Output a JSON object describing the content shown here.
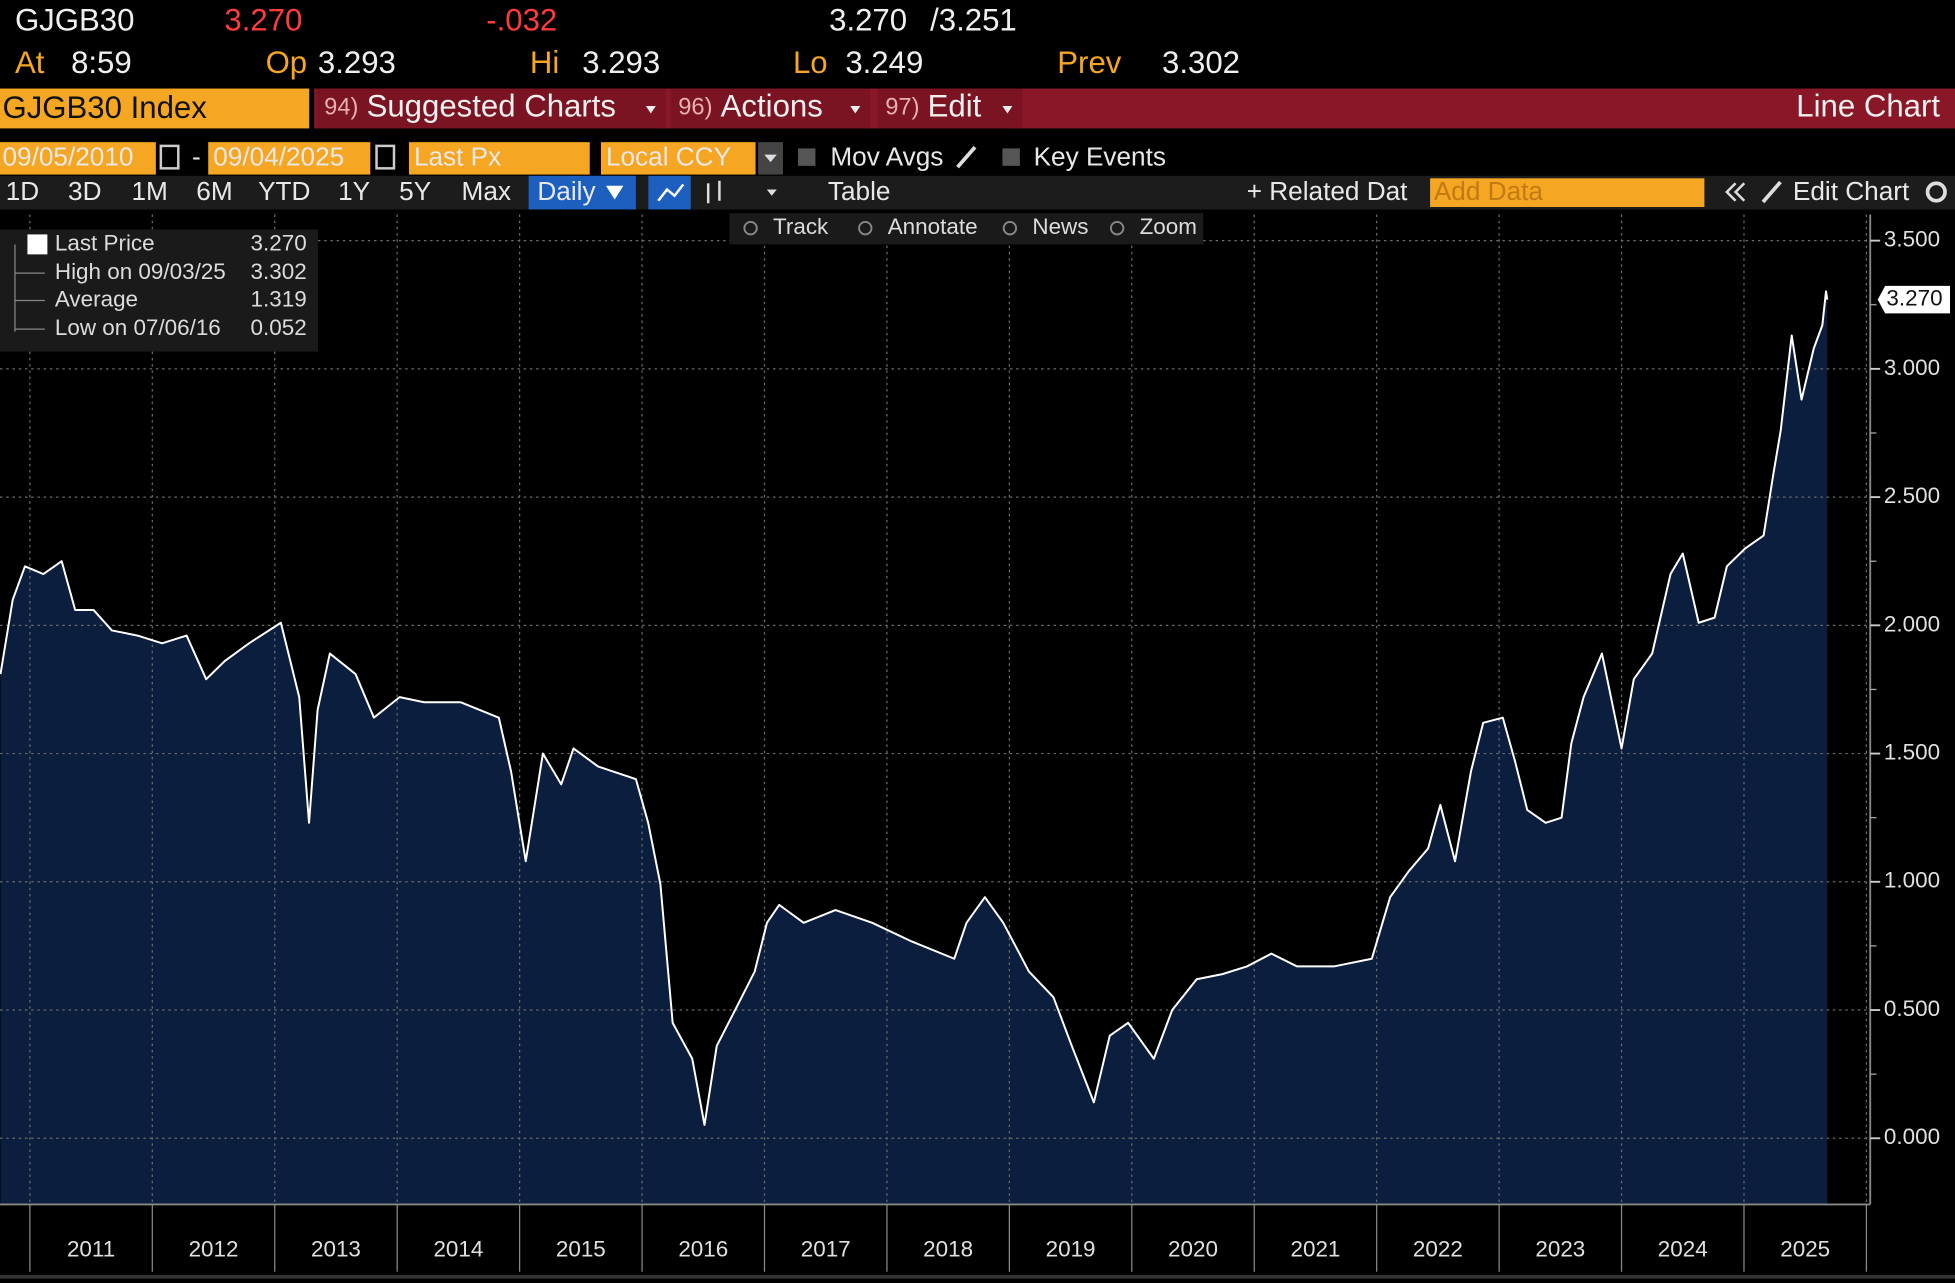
{
  "header": {
    "ticker": "GJGB30",
    "last": "3.270",
    "change": "-.032",
    "bid": "3.270",
    "ask": "/3.251",
    "time_label": "At",
    "time": "8:59",
    "open_label": "Op",
    "open": "3.293",
    "high_label": "Hi",
    "high": "3.293",
    "low_label": "Lo",
    "low": "3.249",
    "prev_label": "Prev",
    "prev": "3.302"
  },
  "menu": {
    "security": "GJGB30 Index",
    "items": [
      {
        "num": "94)",
        "label": "Suggested Charts"
      },
      {
        "num": "96)",
        "label": "Actions"
      },
      {
        "num": "97)",
        "label": "Edit"
      }
    ],
    "view": "Line Chart"
  },
  "controls": {
    "start_date": "09/05/2010",
    "separator": "-",
    "end_date": "09/04/2025",
    "field": "Last Px",
    "currency": "Local CCY",
    "mov_avgs": "Mov Avgs",
    "key_events": "Key Events"
  },
  "toolbar": {
    "periods": [
      "1D",
      "3D",
      "1M",
      "6M",
      "YTD",
      "1Y",
      "5Y",
      "Max"
    ],
    "frequency": "Daily",
    "table": "Table",
    "related": "Related Dat",
    "add_data": "Add Data",
    "edit_chart": "Edit Chart"
  },
  "tools": [
    "Track",
    "Annotate",
    "News",
    "Zoom"
  ],
  "legend": [
    {
      "label": "Last Price",
      "value": "3.270"
    },
    {
      "label": "High on 09/03/25",
      "value": "3.302"
    },
    {
      "label": "Average",
      "value": "1.319"
    },
    {
      "label": "Low on 07/06/16",
      "value": "0.052"
    }
  ],
  "chart_data": {
    "type": "area",
    "color": "#ffffff",
    "fill": "#0b1e3d",
    "grid": true,
    "last_tag": "3.270",
    "x": [
      2010.76,
      2010.86,
      2010.96,
      2011.11,
      2011.26,
      2011.37,
      2011.52,
      2011.67,
      2011.88,
      2012.08,
      2012.28,
      2012.44,
      2012.59,
      2012.79,
      2013.05,
      2013.2,
      2013.28,
      2013.35,
      2013.45,
      2013.66,
      2013.81,
      2014.02,
      2014.22,
      2014.52,
      2014.83,
      2014.93,
      2015.05,
      2015.19,
      2015.34,
      2015.44,
      2015.64,
      2015.95,
      2016.05,
      2016.15,
      2016.25,
      2016.41,
      2016.51,
      2016.61,
      2016.76,
      2016.92,
      2017.02,
      2017.12,
      2017.32,
      2017.58,
      2017.88,
      2018.19,
      2018.55,
      2018.65,
      2018.8,
      2018.95,
      2019.16,
      2019.36,
      2019.51,
      2019.69,
      2019.82,
      2019.97,
      2020.18,
      2020.33,
      2020.53,
      2020.74,
      2020.94,
      2021.14,
      2021.35,
      2021.65,
      2021.96,
      2022.11,
      2022.26,
      2022.42,
      2022.52,
      2022.64,
      2022.77,
      2022.87,
      2023.03,
      2023.13,
      2023.23,
      2023.38,
      2023.51,
      2023.59,
      2023.69,
      2023.84,
      2024.0,
      2024.1,
      2024.25,
      2024.4,
      2024.5,
      2024.63,
      2024.76,
      2024.86,
      2025.01,
      2025.16,
      2025.24,
      2025.3,
      2025.39,
      2025.47,
      2025.57,
      2025.64,
      2025.67,
      2025.68
    ],
    "values": [
      1.81,
      2.1,
      2.23,
      2.2,
      2.25,
      2.06,
      2.06,
      1.98,
      1.96,
      1.93,
      1.96,
      1.79,
      1.86,
      1.93,
      2.01,
      1.72,
      1.23,
      1.67,
      1.89,
      1.81,
      1.64,
      1.72,
      1.7,
      1.7,
      1.64,
      1.43,
      1.08,
      1.5,
      1.38,
      1.52,
      1.45,
      1.4,
      1.23,
      0.99,
      0.45,
      0.31,
      0.052,
      0.36,
      0.5,
      0.65,
      0.84,
      0.91,
      0.84,
      0.89,
      0.84,
      0.77,
      0.7,
      0.84,
      0.94,
      0.84,
      0.65,
      0.55,
      0.36,
      0.14,
      0.4,
      0.45,
      0.31,
      0.5,
      0.62,
      0.64,
      0.67,
      0.72,
      0.67,
      0.67,
      0.7,
      0.94,
      1.04,
      1.13,
      1.3,
      1.08,
      1.43,
      1.62,
      1.64,
      1.47,
      1.28,
      1.23,
      1.25,
      1.54,
      1.72,
      1.89,
      1.52,
      1.79,
      1.89,
      2.2,
      2.28,
      2.01,
      2.03,
      2.23,
      2.3,
      2.35,
      2.59,
      2.76,
      3.13,
      2.88,
      3.08,
      3.17,
      3.302,
      3.27
    ],
    "xlim": [
      2010.756,
      2026.031
    ],
    "ylim": [
      -0.258,
      3.602
    ],
    "xticks": [
      {
        "value": 2011.5,
        "label": "2011"
      },
      {
        "value": 2012.5,
        "label": "2012"
      },
      {
        "value": 2013.5,
        "label": "2013"
      },
      {
        "value": 2014.5,
        "label": "2014"
      },
      {
        "value": 2015.5,
        "label": "2015"
      },
      {
        "value": 2016.5,
        "label": "2016"
      },
      {
        "value": 2017.5,
        "label": "2017"
      },
      {
        "value": 2018.5,
        "label": "2018"
      },
      {
        "value": 2019.5,
        "label": "2019"
      },
      {
        "value": 2020.5,
        "label": "2020"
      },
      {
        "value": 2021.5,
        "label": "2021"
      },
      {
        "value": 2022.5,
        "label": "2022"
      },
      {
        "value": 2023.5,
        "label": "2023"
      },
      {
        "value": 2024.5,
        "label": "2024"
      },
      {
        "value": 2025.5,
        "label": "2025"
      }
    ],
    "xgrid": [
      2011,
      2012,
      2013,
      2014,
      2015,
      2016,
      2017,
      2018,
      2019,
      2020,
      2021,
      2022,
      2023,
      2024,
      2025,
      2026
    ],
    "yticks": [
      {
        "value": 0,
        "label": "0.000"
      },
      {
        "value": 0.5,
        "label": "0.500"
      },
      {
        "value": 1,
        "label": "1.000"
      },
      {
        "value": 1.5,
        "label": "1.500"
      },
      {
        "value": 2,
        "label": "2.000"
      },
      {
        "value": 2.5,
        "label": "2.500"
      },
      {
        "value": 3,
        "label": "3.000"
      },
      {
        "value": 3.5,
        "label": "3.500"
      }
    ],
    "yminor": [
      0.25,
      0.75,
      1.25,
      1.75,
      2.25,
      2.75,
      3.25
    ]
  }
}
